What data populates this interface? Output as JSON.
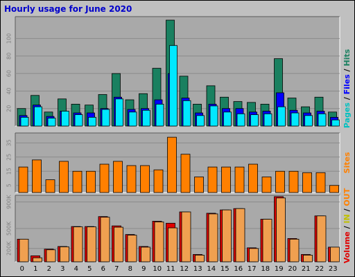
{
  "title": "Hourly usage for June 2020",
  "colors": {
    "background": "#c0c0c0",
    "panel": "#a9a9a9",
    "hits": "#1a8060",
    "files": "#0000ff",
    "pages": "#00e8ff",
    "sites": "#ff8000",
    "kbytes": "#f0a050",
    "visits": "#e00000",
    "title": "#0000cc"
  },
  "side_labels": {
    "top": [
      {
        "text": "Pages",
        "color": "#00c0c0"
      },
      {
        "text": " / ",
        "color": "#000000"
      },
      {
        "text": "Files",
        "color": "#0000ff"
      },
      {
        "text": " / ",
        "color": "#000000"
      },
      {
        "text": "Hits",
        "color": "#1a8060"
      }
    ],
    "middle": [
      {
        "text": "Sites",
        "color": "#ff8000"
      }
    ],
    "bottom": [
      {
        "text": "Volume",
        "color": "#e00000"
      },
      {
        "text": " / ",
        "color": "#000000"
      },
      {
        "text": "IN",
        "color": "#c0c000"
      },
      {
        "text": " / ",
        "color": "#000000"
      },
      {
        "text": "OUT",
        "color": "#ff8000"
      }
    ]
  },
  "chart_data": [
    {
      "type": "bar",
      "categories": [
        "0",
        "1",
        "2",
        "3",
        "4",
        "5",
        "6",
        "7",
        "8",
        "9",
        "10",
        "11",
        "12",
        "13",
        "14",
        "15",
        "16",
        "17",
        "18",
        "19",
        "20",
        "21",
        "22",
        "23"
      ],
      "yticks": [
        20,
        40,
        60,
        80,
        100
      ],
      "ylim": [
        0,
        125
      ],
      "series": [
        {
          "name": "Hits",
          "values": [
            20,
            35,
            16,
            31,
            25,
            24,
            36,
            60,
            30,
            37,
            66,
            121,
            57,
            25,
            46,
            33,
            28,
            27,
            25,
            77,
            32,
            22,
            33,
            16
          ]
        },
        {
          "name": "Files",
          "values": [
            12,
            24,
            11,
            17,
            15,
            15,
            20,
            33,
            19,
            20,
            30,
            60,
            32,
            15,
            25,
            20,
            20,
            16,
            17,
            38,
            18,
            15,
            17,
            10
          ]
        },
        {
          "name": "Pages",
          "values": [
            10,
            22,
            9,
            17,
            13,
            10,
            19,
            31,
            16,
            18,
            25,
            92,
            29,
            12,
            23,
            16,
            14,
            13,
            14,
            22,
            15,
            12,
            14,
            7
          ]
        }
      ]
    },
    {
      "type": "bar",
      "categories": [
        "0",
        "1",
        "2",
        "3",
        "4",
        "5",
        "6",
        "7",
        "8",
        "9",
        "10",
        "11",
        "12",
        "13",
        "14",
        "15",
        "16",
        "17",
        "18",
        "19",
        "20",
        "21",
        "22",
        "23"
      ],
      "yticks": [
        5,
        15,
        25,
        35
      ],
      "ylim": [
        0,
        42
      ],
      "series": [
        {
          "name": "Sites",
          "values": [
            18,
            23,
            9,
            22,
            15,
            15,
            20,
            22,
            19,
            19,
            16,
            39,
            27,
            11,
            18,
            18,
            18,
            20,
            11,
            15,
            15,
            14,
            14,
            5
          ]
        }
      ]
    },
    {
      "type": "bar",
      "categories": [
        "0",
        "1",
        "2",
        "3",
        "4",
        "5",
        "6",
        "7",
        "8",
        "9",
        "10",
        "11",
        "12",
        "13",
        "14",
        "15",
        "16",
        "17",
        "18",
        "19",
        "20",
        "21",
        "22",
        "23"
      ],
      "yticks": [
        "200K",
        "500K",
        "900K"
      ],
      "ytick_values": [
        200,
        500,
        900
      ],
      "ylim": [
        0,
        1000
      ],
      "series": [
        {
          "name": "Volume",
          "values": [
            340,
            90,
            190,
            230,
            530,
            530,
            680,
            540,
            410,
            230,
            610,
            580,
            750,
            110,
            730,
            780,
            800,
            210,
            640,
            980,
            350,
            110,
            690,
            220
          ]
        },
        {
          "name": "OUT",
          "values": [
            340,
            60,
            180,
            225,
            525,
            525,
            670,
            520,
            400,
            220,
            600,
            510,
            750,
            100,
            720,
            780,
            800,
            200,
            640,
            960,
            340,
            100,
            690,
            220
          ]
        }
      ]
    }
  ]
}
